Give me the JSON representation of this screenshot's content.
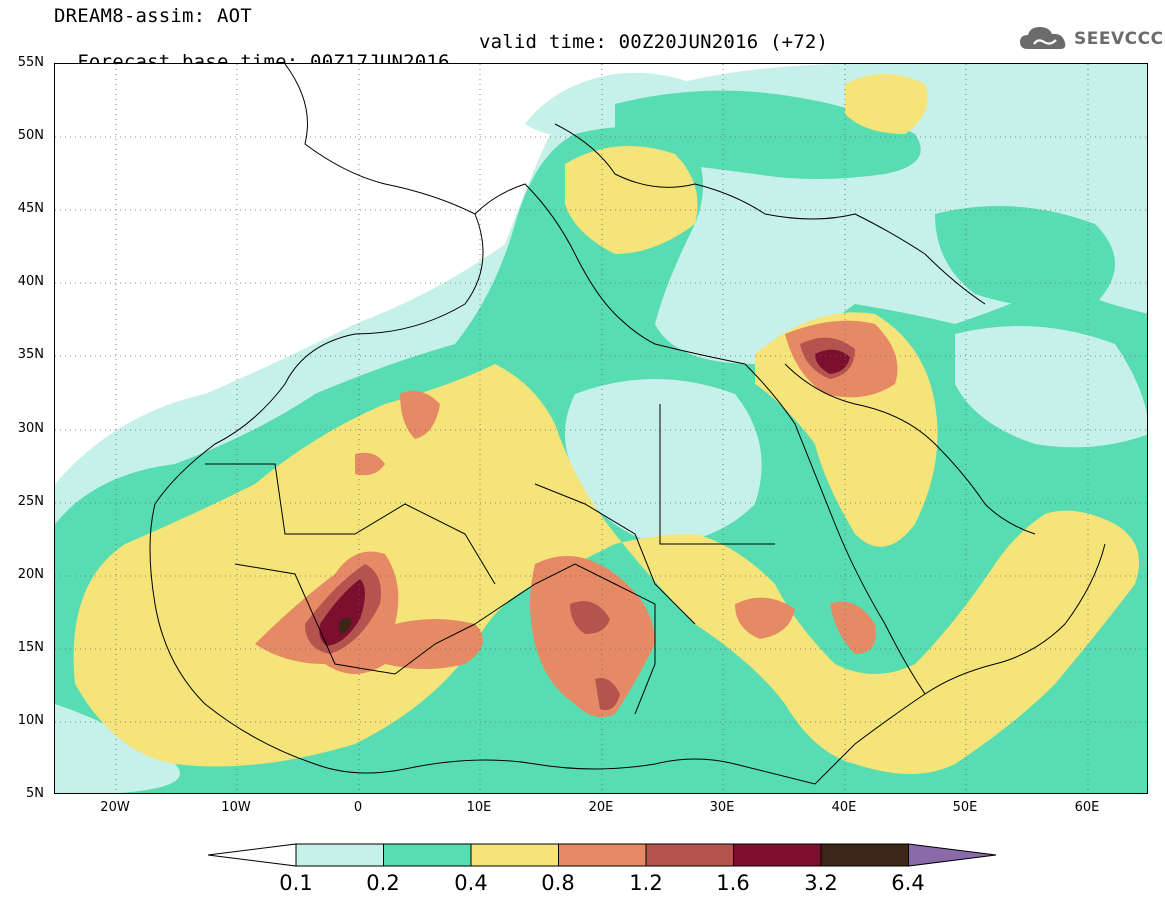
{
  "header": {
    "title": "DREAM8-assim: AOT",
    "base_time": "Forecast base time: 00Z17JUN2016",
    "valid_time": "valid time: 00Z20JUN2016 (+72)"
  },
  "logo": {
    "text": "SEEVCCC",
    "icon": "cloud-icon"
  },
  "map": {
    "lat_labels": [
      "55N",
      "50N",
      "45N",
      "40N",
      "35N",
      "30N",
      "25N",
      "20N",
      "15N",
      "10N",
      "5N"
    ],
    "lon_labels": [
      "20W",
      "10W",
      "0",
      "10E",
      "20E",
      "30E",
      "40E",
      "50E",
      "60E"
    ],
    "lat_range": [
      5,
      55
    ],
    "lon_range": [
      -25,
      65
    ],
    "grid": "dotted"
  },
  "legend": {
    "labels": [
      "0.1",
      "0.2",
      "0.4",
      "0.8",
      "1.2",
      "1.6",
      "3.2",
      "6.4"
    ],
    "colors": [
      "#ffffff",
      "#c6f0ea",
      "#58dcb2",
      "#f5e479",
      "#e68a66",
      "#b5544e",
      "#7d0f2e",
      "#3d2617",
      "#8a6aa8"
    ]
  }
}
